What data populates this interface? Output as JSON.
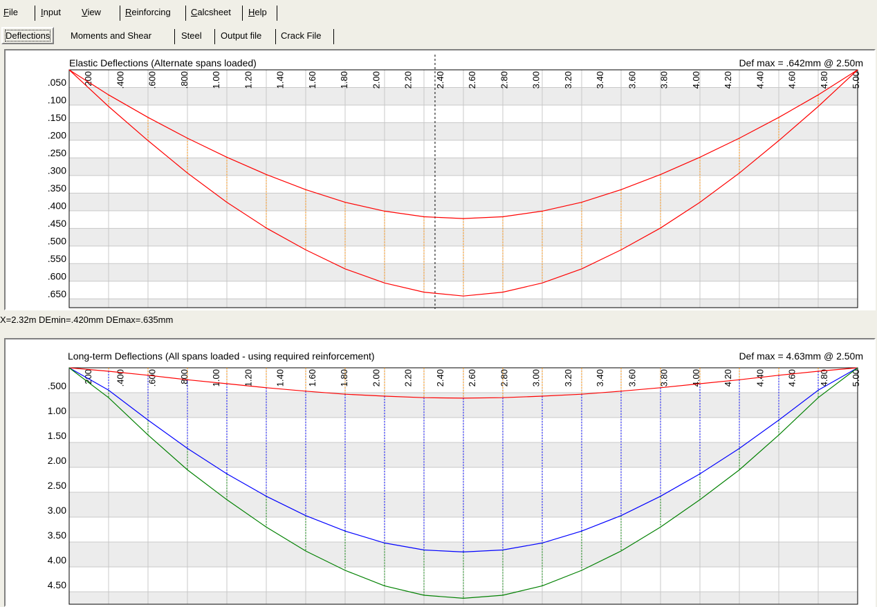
{
  "menu": {
    "items": [
      {
        "label": "File",
        "mnemonic": "F"
      },
      {
        "label": "Input",
        "mnemonic": "I"
      },
      {
        "label": "View",
        "mnemonic": "V"
      },
      {
        "label": "Reinforcing",
        "mnemonic": "R"
      },
      {
        "label": "Calcsheet",
        "mnemonic": "C"
      },
      {
        "label": "Help",
        "mnemonic": "H"
      }
    ]
  },
  "tabs": {
    "items": [
      {
        "label": "Deflections",
        "active": true
      },
      {
        "label": "Moments and Shear",
        "active": false
      },
      {
        "label": "Steel",
        "active": false
      },
      {
        "label": "Output file",
        "active": false
      },
      {
        "label": "Crack File",
        "active": false
      }
    ]
  },
  "panel1": {
    "title": "Elastic Deflections  (Alternate spans loaded)",
    "max_label": "Def max = .642mm @ 2.50m",
    "status": "X=2.32m  DEmin=.420mm  DEmax=.635mm"
  },
  "panel2": {
    "title": "Long-term Deflections  (All spans loaded - using required reinforcement)",
    "max_label": "Def max = 4.63mm @ 2.50m"
  },
  "colors": {
    "red": "#ff0000",
    "blue": "#0000ff",
    "green": "#008000",
    "orange": "#ff8c00",
    "band": "#ececec",
    "grid": "#c8c8c8"
  },
  "chart_data": [
    {
      "type": "line",
      "title": "Elastic Deflections  (Alternate spans loaded)",
      "xlim": [
        0,
        5.0
      ],
      "x_tick_labels": [
        "200",
        ".400",
        ".600",
        ".800",
        "1.00",
        "1.20",
        "1.40",
        "1.60",
        "1.80",
        "2.00",
        "2.20",
        "2.40",
        "2.60",
        "2.80",
        "3.00",
        "3.20",
        "3.40",
        "3.60",
        "3.80",
        "4.00",
        "4.20",
        "4.40",
        "4.60",
        "4.80",
        "5.00"
      ],
      "ylim": [
        0,
        0.675
      ],
      "y_inverted": true,
      "y_tick_labels": [
        ".050",
        ".100",
        ".150",
        ".200",
        ".250",
        ".300",
        ".350",
        ".400",
        ".450",
        ".500",
        ".550",
        ".600",
        ".650"
      ],
      "cursor_x": 2.32,
      "x": [
        0,
        0.25,
        0.5,
        0.75,
        1.0,
        1.25,
        1.5,
        1.75,
        2.0,
        2.25,
        2.5,
        2.75,
        3.0,
        3.25,
        3.5,
        3.75,
        4.0,
        4.25,
        4.5,
        4.75,
        5.0
      ],
      "series": [
        {
          "color": "red",
          "values": [
            0,
            0.071,
            0.135,
            0.194,
            0.248,
            0.297,
            0.34,
            0.376,
            0.401,
            0.417,
            0.422,
            0.417,
            0.401,
            0.376,
            0.34,
            0.297,
            0.248,
            0.194,
            0.135,
            0.071,
            0
          ]
        },
        {
          "color": "red",
          "values": [
            0,
            0.104,
            0.201,
            0.293,
            0.376,
            0.449,
            0.511,
            0.565,
            0.605,
            0.631,
            0.642,
            0.631,
            0.605,
            0.565,
            0.511,
            0.449,
            0.376,
            0.293,
            0.201,
            0.104,
            0
          ]
        }
      ]
    },
    {
      "type": "line",
      "title": "Long-term Deflections  (All spans loaded - using required reinforcement)",
      "xlim": [
        0,
        5.0
      ],
      "x_tick_labels": [
        "200",
        ".400",
        ".600",
        ".800",
        "1.00",
        "1.20",
        "1.40",
        "1.60",
        "1.80",
        "2.00",
        "2.20",
        "2.40",
        "2.60",
        "2.80",
        "3.00",
        "3.20",
        "3.40",
        "3.60",
        "3.80",
        "4.00",
        "4.20",
        "4.40",
        "4.60",
        "4.80",
        "5.00"
      ],
      "ylim": [
        0,
        4.75
      ],
      "y_inverted": true,
      "y_tick_labels": [
        ".500",
        "1.00",
        "1.50",
        "2.00",
        "2.50",
        "3.00",
        "3.50",
        "4.00",
        "4.50"
      ],
      "x": [
        0,
        0.25,
        0.5,
        0.75,
        1.0,
        1.25,
        1.5,
        1.75,
        2.0,
        2.25,
        2.5,
        2.75,
        3.0,
        3.25,
        3.5,
        3.75,
        4.0,
        4.25,
        4.5,
        4.75,
        5.0
      ],
      "series": [
        {
          "color": "red",
          "values": [
            0,
            0.07,
            0.15,
            0.24,
            0.32,
            0.4,
            0.47,
            0.53,
            0.57,
            0.6,
            0.61,
            0.6,
            0.57,
            0.53,
            0.47,
            0.4,
            0.32,
            0.24,
            0.15,
            0.07,
            0
          ]
        },
        {
          "color": "blue",
          "values": [
            0,
            0.45,
            1.05,
            1.62,
            2.13,
            2.58,
            2.97,
            3.28,
            3.52,
            3.66,
            3.7,
            3.66,
            3.52,
            3.28,
            2.97,
            2.58,
            2.13,
            1.62,
            1.05,
            0.45,
            0
          ]
        },
        {
          "color": "green",
          "values": [
            0,
            0.6,
            1.35,
            2.05,
            2.65,
            3.2,
            3.68,
            4.07,
            4.38,
            4.57,
            4.63,
            4.57,
            4.38,
            4.07,
            3.68,
            3.2,
            2.65,
            2.05,
            1.35,
            0.6,
            0
          ]
        }
      ]
    }
  ]
}
